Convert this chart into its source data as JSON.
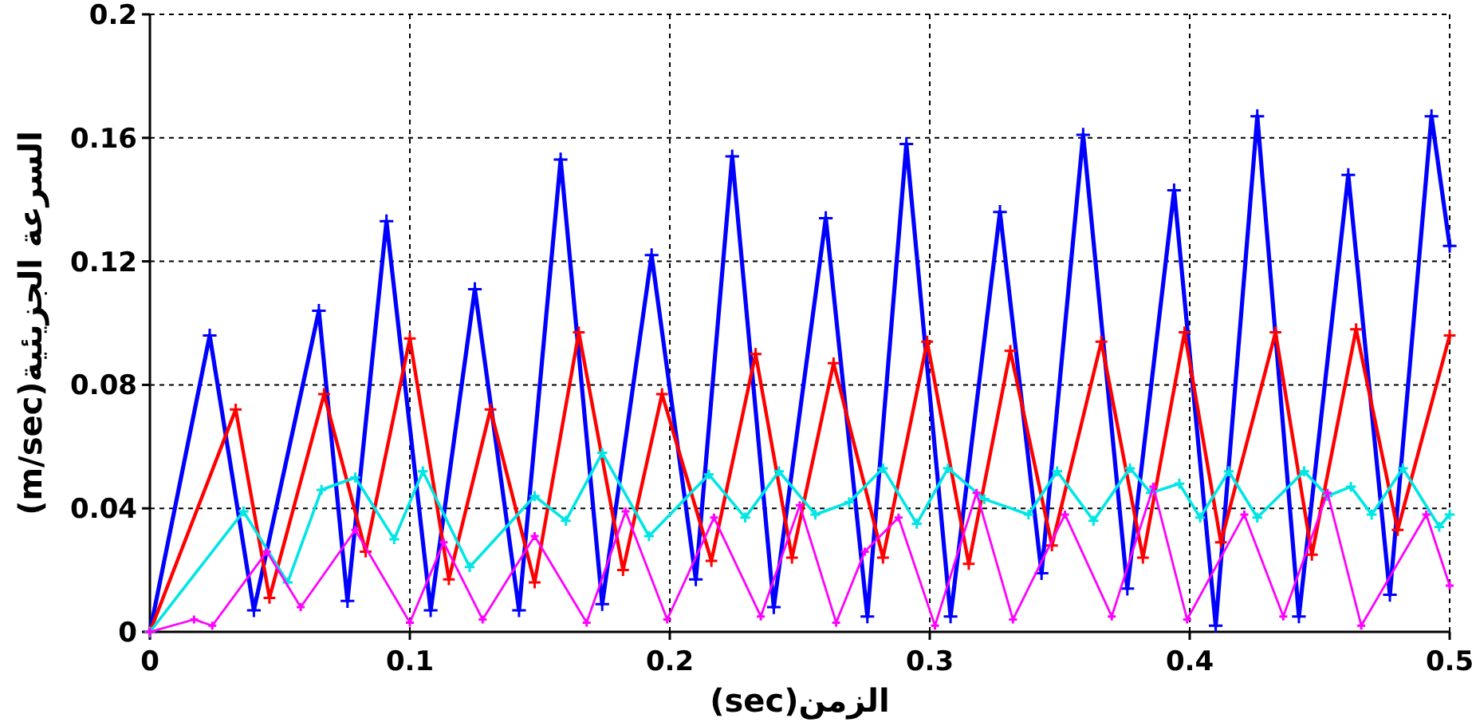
{
  "chart_data": {
    "type": "line",
    "xlabel": "الزمن(sec)",
    "ylabel": "السرعة الجزيئية(m/sec)",
    "xlim": [
      0,
      0.5
    ],
    "ylim": [
      0,
      0.2
    ],
    "xticks": [
      0,
      0.1,
      0.2,
      0.3,
      0.4,
      0.5
    ],
    "yticks": [
      0,
      0.04,
      0.08,
      0.12,
      0.16,
      0.2
    ],
    "grid": true,
    "marker": "cross",
    "line_style": "solid",
    "series": [
      {
        "color": "#0000ff",
        "x": [
          0,
          0.023,
          0.04,
          0.065,
          0.076,
          0.091,
          0.108,
          0.125,
          0.142,
          0.158,
          0.174,
          0.193,
          0.21,
          0.224,
          0.24,
          0.26,
          0.276,
          0.291,
          0.308,
          0.327,
          0.343,
          0.359,
          0.376,
          0.394,
          0.41,
          0.426,
          0.442,
          0.461,
          0.477,
          0.493,
          0.5
        ],
        "values": [
          0,
          0.096,
          0.007,
          0.104,
          0.01,
          0.133,
          0.007,
          0.111,
          0.007,
          0.153,
          0.009,
          0.122,
          0.017,
          0.154,
          0.008,
          0.134,
          0.005,
          0.158,
          0.005,
          0.136,
          0.019,
          0.161,
          0.014,
          0.143,
          0.002,
          0.167,
          0.005,
          0.148,
          0.012,
          0.167,
          0.125
        ]
      },
      {
        "color": "#ff0000",
        "x": [
          0,
          0.033,
          0.046,
          0.067,
          0.083,
          0.1,
          0.115,
          0.131,
          0.148,
          0.165,
          0.182,
          0.197,
          0.216,
          0.233,
          0.247,
          0.263,
          0.282,
          0.299,
          0.315,
          0.331,
          0.347,
          0.366,
          0.382,
          0.398,
          0.412,
          0.433,
          0.447,
          0.464,
          0.48,
          0.5
        ],
        "values": [
          0,
          0.072,
          0.011,
          0.077,
          0.026,
          0.095,
          0.017,
          0.072,
          0.016,
          0.097,
          0.02,
          0.077,
          0.023,
          0.09,
          0.024,
          0.087,
          0.024,
          0.094,
          0.022,
          0.091,
          0.028,
          0.094,
          0.024,
          0.097,
          0.029,
          0.097,
          0.025,
          0.098,
          0.033,
          0.096
        ]
      },
      {
        "color": "#00e5e5",
        "x": [
          0,
          0.036,
          0.053,
          0.066,
          0.079,
          0.094,
          0.105,
          0.123,
          0.148,
          0.16,
          0.174,
          0.192,
          0.215,
          0.229,
          0.242,
          0.256,
          0.269,
          0.282,
          0.295,
          0.307,
          0.321,
          0.338,
          0.349,
          0.363,
          0.377,
          0.385,
          0.396,
          0.404,
          0.415,
          0.426,
          0.444,
          0.453,
          0.462,
          0.47,
          0.482,
          0.496,
          0.5
        ],
        "values": [
          0,
          0.039,
          0.016,
          0.046,
          0.05,
          0.03,
          0.052,
          0.021,
          0.044,
          0.036,
          0.058,
          0.031,
          0.051,
          0.037,
          0.052,
          0.038,
          0.042,
          0.053,
          0.035,
          0.053,
          0.043,
          0.038,
          0.052,
          0.036,
          0.053,
          0.045,
          0.048,
          0.037,
          0.052,
          0.037,
          0.052,
          0.044,
          0.047,
          0.038,
          0.053,
          0.034,
          0.038
        ]
      },
      {
        "color": "#ff00ff",
        "x": [
          0,
          0.017,
          0.024,
          0.045,
          0.058,
          0.079,
          0.1,
          0.113,
          0.128,
          0.148,
          0.168,
          0.183,
          0.199,
          0.217,
          0.235,
          0.25,
          0.264,
          0.275,
          0.288,
          0.302,
          0.318,
          0.332,
          0.352,
          0.37,
          0.386,
          0.399,
          0.421,
          0.436,
          0.453,
          0.466,
          0.491,
          0.5
        ],
        "values": [
          0,
          0.004,
          0.002,
          0.026,
          0.008,
          0.033,
          0.003,
          0.029,
          0.004,
          0.031,
          0.003,
          0.039,
          0.004,
          0.037,
          0.005,
          0.041,
          0.003,
          0.026,
          0.037,
          0.002,
          0.045,
          0.004,
          0.038,
          0.005,
          0.047,
          0.004,
          0.038,
          0.005,
          0.045,
          0.002,
          0.038,
          0.015
        ]
      }
    ]
  }
}
